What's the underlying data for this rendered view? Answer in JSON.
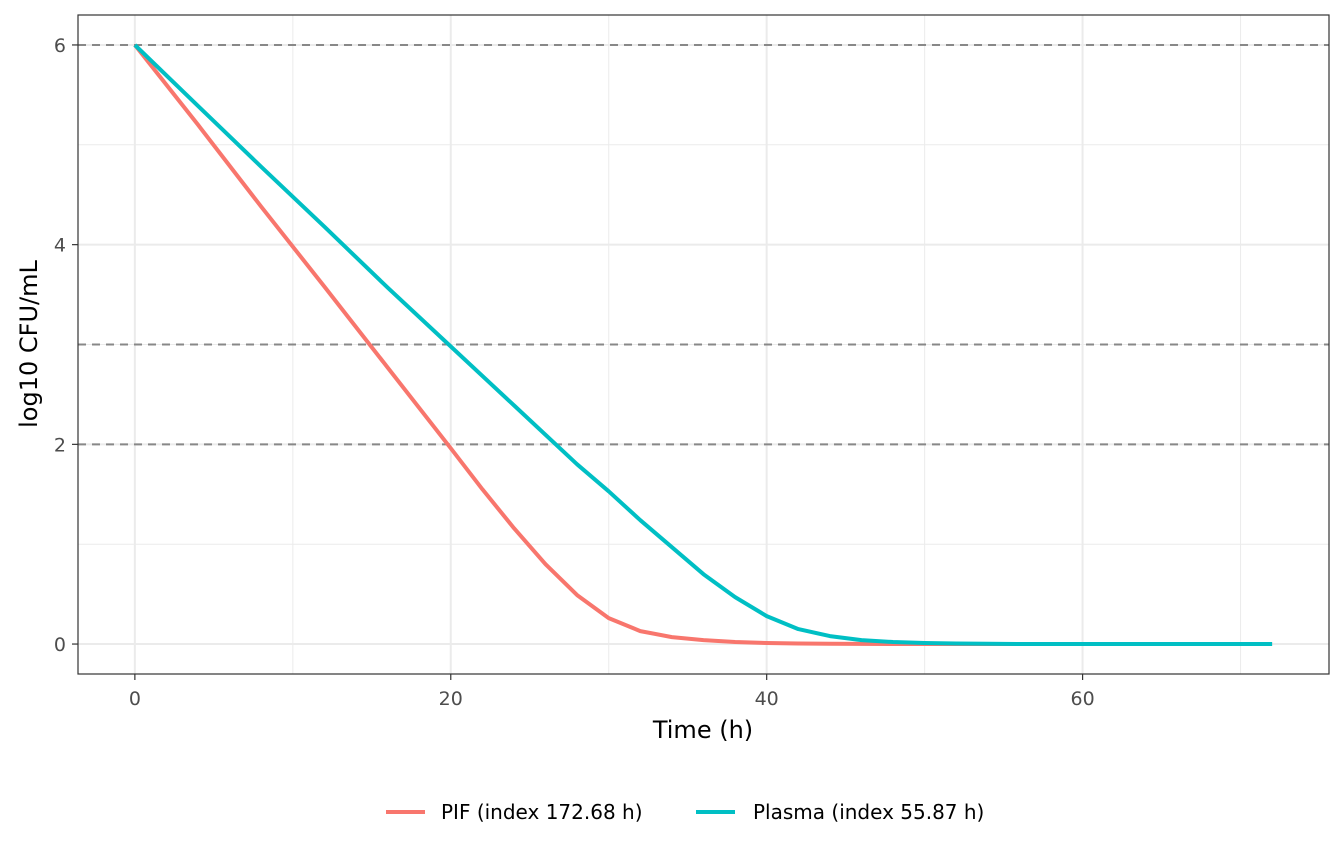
{
  "chart_data": {
    "type": "line",
    "title": "",
    "xlabel": "Time (h)",
    "ylabel": "log10 CFU/mL",
    "xlim": [
      -3.6,
      75.6
    ],
    "ylim": [
      -0.3,
      6.3
    ],
    "x_ticks": [
      0,
      20,
      40,
      60
    ],
    "y_ticks": [
      0,
      2,
      4,
      6
    ],
    "x_minor_ticks": [
      10,
      30,
      50,
      70
    ],
    "y_minor_ticks": [
      1,
      3,
      5
    ],
    "grid": true,
    "legend_position": "bottom",
    "reference_lines": [
      {
        "axis": "y",
        "value": 6,
        "style": "dashed",
        "color": "#888888"
      },
      {
        "axis": "y",
        "value": 3,
        "style": "dashed",
        "color": "#888888"
      },
      {
        "axis": "y",
        "value": 2,
        "style": "dashed",
        "color": "#888888"
      }
    ],
    "series": [
      {
        "name": "PIF (index 172.68 h)",
        "color": "#F8766D",
        "x": [
          0,
          4,
          8,
          12,
          16,
          20,
          22,
          24,
          26,
          28,
          30,
          32,
          34,
          36,
          38,
          40,
          42,
          44,
          46,
          48,
          50,
          55,
          60,
          65,
          72
        ],
        "y": [
          6.0,
          5.2,
          4.38,
          3.58,
          2.77,
          1.96,
          1.55,
          1.16,
          0.8,
          0.49,
          0.26,
          0.13,
          0.07,
          0.04,
          0.02,
          0.01,
          0.005,
          0.002,
          0.001,
          0.0,
          0.0,
          0.0,
          0.0,
          0.0,
          0.0
        ]
      },
      {
        "name": "Plasma (index 55.87 h)",
        "color": "#00BFC4",
        "x": [
          0,
          4,
          8,
          12,
          16,
          20,
          24,
          28,
          30,
          32,
          34,
          36,
          38,
          40,
          42,
          44,
          46,
          48,
          50,
          52,
          54,
          56,
          60,
          65,
          72
        ],
        "y": [
          6.0,
          5.39,
          4.78,
          4.18,
          3.57,
          2.98,
          2.39,
          1.8,
          1.53,
          1.24,
          0.97,
          0.7,
          0.47,
          0.28,
          0.15,
          0.08,
          0.04,
          0.02,
          0.01,
          0.005,
          0.002,
          0.0,
          0.0,
          0.0,
          0.0
        ]
      }
    ]
  }
}
